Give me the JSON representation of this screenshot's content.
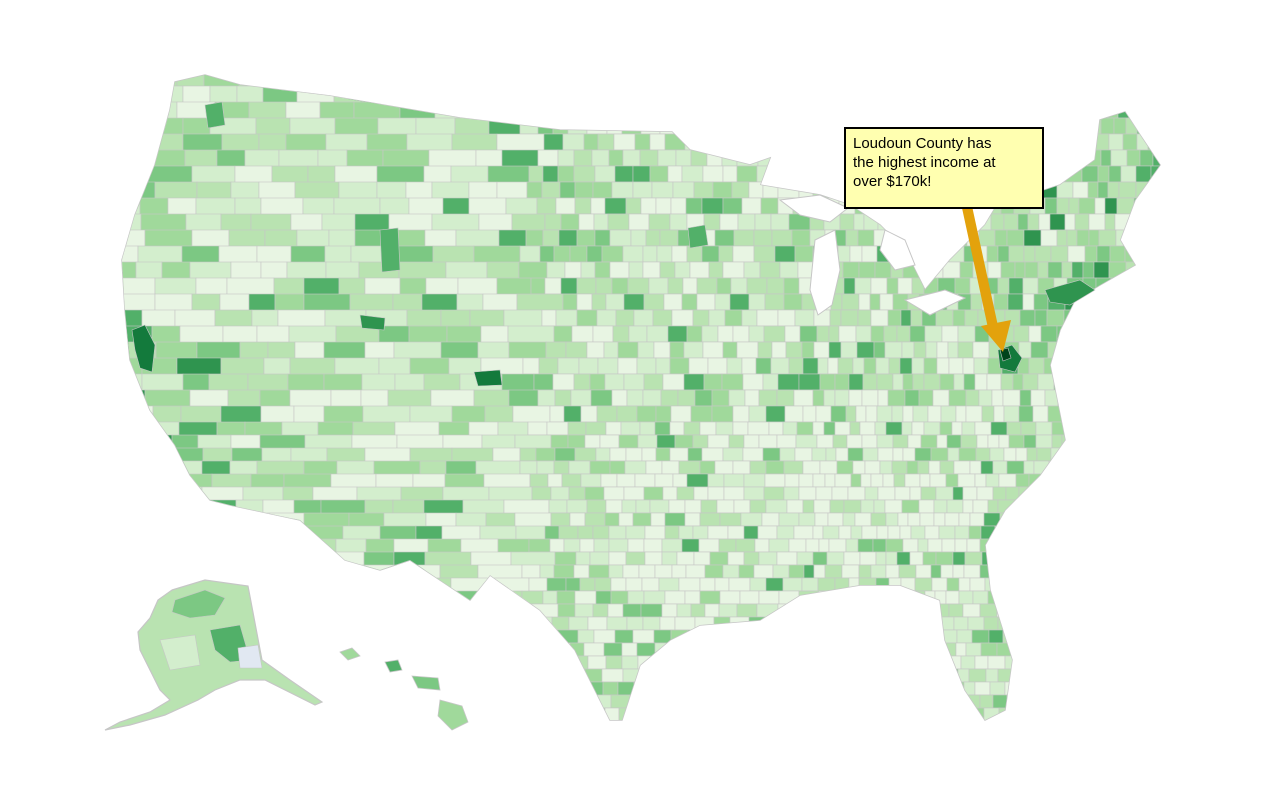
{
  "map": {
    "subject": "US counties choropleth of median household income",
    "color_scale": [
      "#e8f5e3",
      "#d3eecd",
      "#b9e3b1",
      "#a0d99b",
      "#7cc883",
      "#52b069",
      "#2f944f",
      "#137a3c",
      "#00441b"
    ],
    "no_data_color": "#e1e8f2",
    "boundary_color": "#c6c6c6",
    "highlight_color": "#00441b"
  },
  "annotation": {
    "text": "Loudoun County has the highest income at over $170k!",
    "box_color": "#ffffb0",
    "border_color": "#000000",
    "arrow_color": "#e3a20c"
  }
}
